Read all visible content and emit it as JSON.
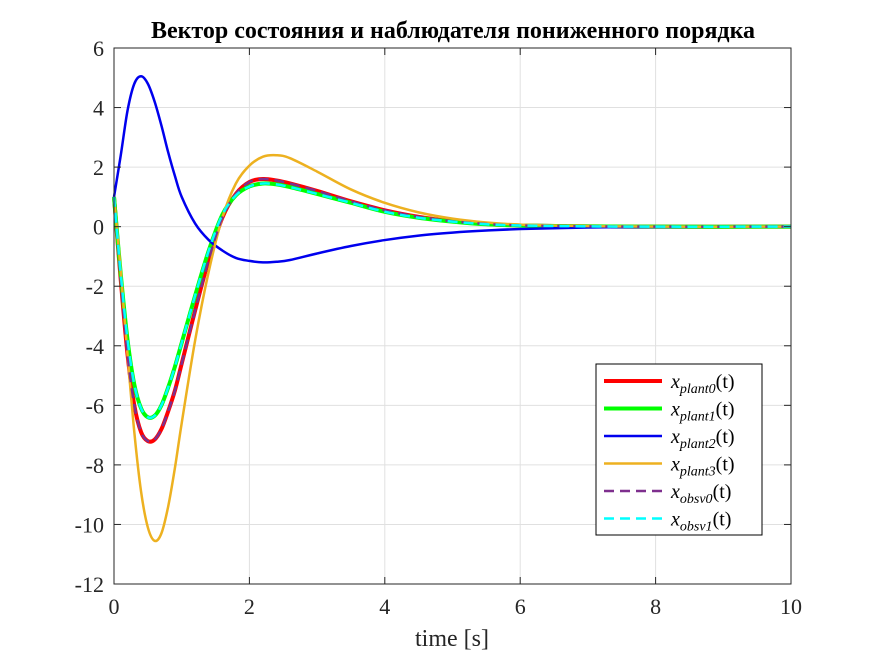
{
  "chart_data": {
    "type": "line",
    "title": "Вектор состояния и наблюдателя пониженного порядка",
    "xlabel": "time [s]",
    "ylabel": "",
    "xlim": [
      0,
      10
    ],
    "ylim": [
      -12,
      6
    ],
    "xticks": [
      0,
      2,
      4,
      6,
      8,
      10
    ],
    "xtick_labels": [
      "0",
      "2",
      "4",
      "6",
      "8",
      "10"
    ],
    "yticks": [
      6,
      4,
      2,
      0,
      -2,
      -4,
      -6,
      -8,
      -10,
      -12
    ],
    "ytick_labels": [
      "6",
      "4",
      "2",
      "0",
      "-2",
      "-4",
      "-6",
      "-8",
      "-10",
      "-12"
    ],
    "grid": true,
    "legend_position": "lower-right",
    "series": [
      {
        "name": "x_plant0(t)",
        "legend_main": "x",
        "legend_sub": "plant0",
        "legend_suffix": "(t)",
        "color": "#ff0000",
        "style": "solid",
        "width": "thick",
        "points": [
          [
            0,
            1
          ],
          [
            0.1,
            -1.8
          ],
          [
            0.2,
            -4.3
          ],
          [
            0.3,
            -6.0
          ],
          [
            0.4,
            -6.9
          ],
          [
            0.5,
            -7.2
          ],
          [
            0.6,
            -7.15
          ],
          [
            0.7,
            -6.8
          ],
          [
            0.8,
            -6.2
          ],
          [
            0.9,
            -5.5
          ],
          [
            1.0,
            -4.6
          ],
          [
            1.2,
            -2.8
          ],
          [
            1.4,
            -1.1
          ],
          [
            1.6,
            0.3
          ],
          [
            1.8,
            1.1
          ],
          [
            2.0,
            1.5
          ],
          [
            2.2,
            1.6
          ],
          [
            2.4,
            1.55
          ],
          [
            2.6,
            1.45
          ],
          [
            3.0,
            1.2
          ],
          [
            3.5,
            0.85
          ],
          [
            4.0,
            0.55
          ],
          [
            4.5,
            0.33
          ],
          [
            5.0,
            0.18
          ],
          [
            5.5,
            0.09
          ],
          [
            6.0,
            0.04
          ],
          [
            7.0,
            0.01
          ],
          [
            8.0,
            0
          ],
          [
            10.0,
            0
          ]
        ]
      },
      {
        "name": "x_plant1(t)",
        "legend_main": "x",
        "legend_sub": "plant1",
        "legend_suffix": "(t)",
        "color": "#00ff00",
        "style": "solid",
        "width": "thick",
        "points": [
          [
            0,
            1
          ],
          [
            0.1,
            -1.6
          ],
          [
            0.2,
            -3.8
          ],
          [
            0.3,
            -5.3
          ],
          [
            0.4,
            -6.1
          ],
          [
            0.5,
            -6.4
          ],
          [
            0.6,
            -6.35
          ],
          [
            0.7,
            -6.0
          ],
          [
            0.8,
            -5.4
          ],
          [
            0.9,
            -4.7
          ],
          [
            1.0,
            -3.9
          ],
          [
            1.2,
            -2.3
          ],
          [
            1.4,
            -0.8
          ],
          [
            1.6,
            0.4
          ],
          [
            1.8,
            1.05
          ],
          [
            2.0,
            1.35
          ],
          [
            2.2,
            1.45
          ],
          [
            2.4,
            1.42
          ],
          [
            2.6,
            1.33
          ],
          [
            3.0,
            1.1
          ],
          [
            3.5,
            0.8
          ],
          [
            4.0,
            0.5
          ],
          [
            4.5,
            0.3
          ],
          [
            5.0,
            0.17
          ],
          [
            5.5,
            0.08
          ],
          [
            6.0,
            0.04
          ],
          [
            7.0,
            0.01
          ],
          [
            8.0,
            0
          ],
          [
            10.0,
            0
          ]
        ]
      },
      {
        "name": "x_plant2(t)",
        "legend_main": "x",
        "legend_sub": "plant2",
        "legend_suffix": "(t)",
        "color": "#0000ee",
        "style": "solid",
        "width": "medium",
        "points": [
          [
            0,
            1
          ],
          [
            0.1,
            2.4
          ],
          [
            0.2,
            3.9
          ],
          [
            0.3,
            4.8
          ],
          [
            0.4,
            5.05
          ],
          [
            0.5,
            4.8
          ],
          [
            0.6,
            4.2
          ],
          [
            0.7,
            3.4
          ],
          [
            0.8,
            2.5
          ],
          [
            0.9,
            1.7
          ],
          [
            1.0,
            1.0
          ],
          [
            1.2,
            0.1
          ],
          [
            1.4,
            -0.45
          ],
          [
            1.6,
            -0.8
          ],
          [
            1.8,
            -1.05
          ],
          [
            2.0,
            -1.15
          ],
          [
            2.2,
            -1.2
          ],
          [
            2.4,
            -1.18
          ],
          [
            2.6,
            -1.12
          ],
          [
            3.0,
            -0.9
          ],
          [
            3.5,
            -0.65
          ],
          [
            4.0,
            -0.45
          ],
          [
            4.5,
            -0.3
          ],
          [
            5.0,
            -0.2
          ],
          [
            5.5,
            -0.13
          ],
          [
            6.0,
            -0.08
          ],
          [
            7.0,
            -0.03
          ],
          [
            8.0,
            -0.01
          ],
          [
            10.0,
            0
          ]
        ]
      },
      {
        "name": "x_plant3(t)",
        "legend_main": "x",
        "legend_sub": "plant3",
        "legend_suffix": "(t)",
        "color": "#edb120",
        "style": "solid",
        "width": "medium",
        "points": [
          [
            0,
            1
          ],
          [
            0.1,
            -1.5
          ],
          [
            0.2,
            -4.3
          ],
          [
            0.3,
            -6.9
          ],
          [
            0.4,
            -8.9
          ],
          [
            0.5,
            -10.1
          ],
          [
            0.6,
            -10.55
          ],
          [
            0.7,
            -10.3
          ],
          [
            0.8,
            -9.4
          ],
          [
            0.9,
            -8.1
          ],
          [
            1.0,
            -6.6
          ],
          [
            1.2,
            -3.8
          ],
          [
            1.4,
            -1.5
          ],
          [
            1.6,
            0.3
          ],
          [
            1.8,
            1.45
          ],
          [
            2.0,
            2.05
          ],
          [
            2.2,
            2.35
          ],
          [
            2.4,
            2.4
          ],
          [
            2.6,
            2.3
          ],
          [
            3.0,
            1.85
          ],
          [
            3.5,
            1.25
          ],
          [
            4.0,
            0.8
          ],
          [
            4.5,
            0.48
          ],
          [
            5.0,
            0.27
          ],
          [
            5.5,
            0.14
          ],
          [
            6.0,
            0.07
          ],
          [
            7.0,
            0.02
          ],
          [
            8.0,
            0
          ],
          [
            10.0,
            0
          ]
        ]
      },
      {
        "name": "x_obsv0(t)",
        "legend_main": "x",
        "legend_sub": "obsv0",
        "legend_suffix": "(t)",
        "color": "#7e2f8e",
        "style": "dashed",
        "width": "medium",
        "points": [
          [
            0,
            1
          ],
          [
            0.1,
            -1.8
          ],
          [
            0.2,
            -4.3
          ],
          [
            0.3,
            -6.0
          ],
          [
            0.4,
            -6.9
          ],
          [
            0.5,
            -7.2
          ],
          [
            0.6,
            -7.15
          ],
          [
            0.7,
            -6.8
          ],
          [
            0.8,
            -6.2
          ],
          [
            0.9,
            -5.5
          ],
          [
            1.0,
            -4.6
          ],
          [
            1.2,
            -2.8
          ],
          [
            1.4,
            -1.1
          ],
          [
            1.6,
            0.3
          ],
          [
            1.8,
            1.1
          ],
          [
            2.0,
            1.5
          ],
          [
            2.2,
            1.6
          ],
          [
            2.4,
            1.55
          ],
          [
            2.6,
            1.45
          ],
          [
            3.0,
            1.2
          ],
          [
            3.5,
            0.85
          ],
          [
            4.0,
            0.55
          ],
          [
            4.5,
            0.33
          ],
          [
            5.0,
            0.18
          ],
          [
            5.5,
            0.09
          ],
          [
            6.0,
            0.04
          ],
          [
            7.0,
            0.01
          ],
          [
            8.0,
            0
          ],
          [
            10.0,
            0
          ]
        ]
      },
      {
        "name": "x_obsv1(t)",
        "legend_main": "x",
        "legend_sub": "obsv1",
        "legend_suffix": "(t)",
        "color": "#00ffff",
        "style": "dashed",
        "width": "medium",
        "points": [
          [
            0,
            1
          ],
          [
            0.1,
            -1.6
          ],
          [
            0.2,
            -3.8
          ],
          [
            0.3,
            -5.3
          ],
          [
            0.4,
            -6.1
          ],
          [
            0.5,
            -6.4
          ],
          [
            0.6,
            -6.35
          ],
          [
            0.7,
            -6.0
          ],
          [
            0.8,
            -5.4
          ],
          [
            0.9,
            -4.7
          ],
          [
            1.0,
            -3.9
          ],
          [
            1.2,
            -2.3
          ],
          [
            1.4,
            -0.8
          ],
          [
            1.6,
            0.4
          ],
          [
            1.8,
            1.05
          ],
          [
            2.0,
            1.35
          ],
          [
            2.2,
            1.45
          ],
          [
            2.4,
            1.42
          ],
          [
            2.6,
            1.33
          ],
          [
            3.0,
            1.1
          ],
          [
            3.5,
            0.8
          ],
          [
            4.0,
            0.5
          ],
          [
            4.5,
            0.3
          ],
          [
            5.0,
            0.17
          ],
          [
            5.5,
            0.08
          ],
          [
            6.0,
            0.04
          ],
          [
            7.0,
            0.01
          ],
          [
            8.0,
            0
          ],
          [
            10.0,
            0
          ]
        ]
      }
    ]
  }
}
